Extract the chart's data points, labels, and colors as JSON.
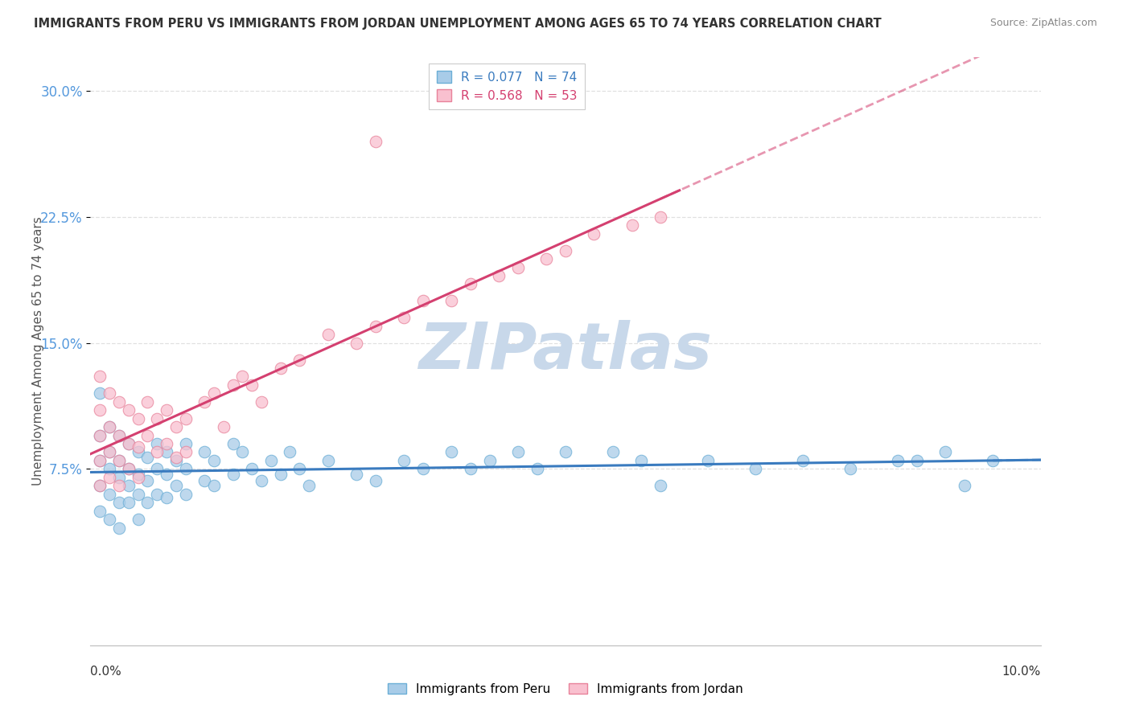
{
  "title": "IMMIGRANTS FROM PERU VS IMMIGRANTS FROM JORDAN UNEMPLOYMENT AMONG AGES 65 TO 74 YEARS CORRELATION CHART",
  "source": "Source: ZipAtlas.com",
  "ylabel": "Unemployment Among Ages 65 to 74 years",
  "ytick_labels": [
    "7.5%",
    "15.0%",
    "22.5%",
    "30.0%"
  ],
  "ytick_values": [
    0.075,
    0.15,
    0.225,
    0.3
  ],
  "xlim": [
    0.0,
    0.1
  ],
  "ylim": [
    -0.03,
    0.32
  ],
  "xaxis_label_left": "0.0%",
  "xaxis_label_right": "10.0%",
  "peru_R": 0.077,
  "peru_N": 74,
  "jordan_R": 0.568,
  "jordan_N": 53,
  "peru_color": "#a8cce8",
  "peru_edge_color": "#6baed6",
  "jordan_color": "#f9c0cf",
  "jordan_edge_color": "#e8829a",
  "peru_line_color": "#3a7bbf",
  "jordan_line_color": "#d44070",
  "watermark_color": "#c8d8ea",
  "title_color": "#333333",
  "source_color": "#888888",
  "ylabel_color": "#555555",
  "ytick_color": "#5599dd",
  "grid_color": "#dddddd",
  "peru_x": [
    0.001,
    0.001,
    0.001,
    0.001,
    0.001,
    0.002,
    0.002,
    0.002,
    0.002,
    0.002,
    0.003,
    0.003,
    0.003,
    0.003,
    0.003,
    0.004,
    0.004,
    0.004,
    0.004,
    0.005,
    0.005,
    0.005,
    0.005,
    0.006,
    0.006,
    0.006,
    0.007,
    0.007,
    0.007,
    0.008,
    0.008,
    0.008,
    0.009,
    0.009,
    0.01,
    0.01,
    0.01,
    0.012,
    0.012,
    0.013,
    0.013,
    0.015,
    0.015,
    0.016,
    0.017,
    0.018,
    0.019,
    0.02,
    0.021,
    0.022,
    0.023,
    0.025,
    0.028,
    0.03,
    0.033,
    0.035,
    0.038,
    0.04,
    0.042,
    0.045,
    0.047,
    0.05,
    0.055,
    0.058,
    0.06,
    0.065,
    0.07,
    0.075,
    0.08,
    0.085,
    0.087,
    0.09,
    0.092,
    0.095
  ],
  "peru_y": [
    0.12,
    0.095,
    0.08,
    0.065,
    0.05,
    0.1,
    0.085,
    0.075,
    0.06,
    0.045,
    0.095,
    0.08,
    0.07,
    0.055,
    0.04,
    0.09,
    0.075,
    0.065,
    0.055,
    0.085,
    0.072,
    0.06,
    0.045,
    0.082,
    0.068,
    0.055,
    0.09,
    0.075,
    0.06,
    0.085,
    0.072,
    0.058,
    0.08,
    0.065,
    0.09,
    0.075,
    0.06,
    0.085,
    0.068,
    0.08,
    0.065,
    0.09,
    0.072,
    0.085,
    0.075,
    0.068,
    0.08,
    0.072,
    0.085,
    0.075,
    0.065,
    0.08,
    0.072,
    0.068,
    0.08,
    0.075,
    0.085,
    0.075,
    0.08,
    0.085,
    0.075,
    0.085,
    0.085,
    0.08,
    0.065,
    0.08,
    0.075,
    0.08,
    0.075,
    0.08,
    0.08,
    0.085,
    0.065,
    0.08
  ],
  "jordan_x": [
    0.001,
    0.001,
    0.001,
    0.001,
    0.001,
    0.002,
    0.002,
    0.002,
    0.002,
    0.003,
    0.003,
    0.003,
    0.003,
    0.004,
    0.004,
    0.004,
    0.005,
    0.005,
    0.005,
    0.006,
    0.006,
    0.007,
    0.007,
    0.008,
    0.008,
    0.009,
    0.009,
    0.01,
    0.01,
    0.012,
    0.013,
    0.014,
    0.015,
    0.016,
    0.017,
    0.018,
    0.02,
    0.022,
    0.025,
    0.028,
    0.03,
    0.033,
    0.035,
    0.038,
    0.04,
    0.043,
    0.045,
    0.048,
    0.05,
    0.053,
    0.057,
    0.06,
    0.03
  ],
  "jordan_y": [
    0.13,
    0.11,
    0.095,
    0.08,
    0.065,
    0.12,
    0.1,
    0.085,
    0.07,
    0.115,
    0.095,
    0.08,
    0.065,
    0.11,
    0.09,
    0.075,
    0.105,
    0.088,
    0.07,
    0.115,
    0.095,
    0.105,
    0.085,
    0.11,
    0.09,
    0.1,
    0.082,
    0.105,
    0.085,
    0.115,
    0.12,
    0.1,
    0.125,
    0.13,
    0.125,
    0.115,
    0.135,
    0.14,
    0.155,
    0.15,
    0.16,
    0.165,
    0.175,
    0.175,
    0.185,
    0.19,
    0.195,
    0.2,
    0.205,
    0.215,
    0.22,
    0.225,
    0.27
  ]
}
